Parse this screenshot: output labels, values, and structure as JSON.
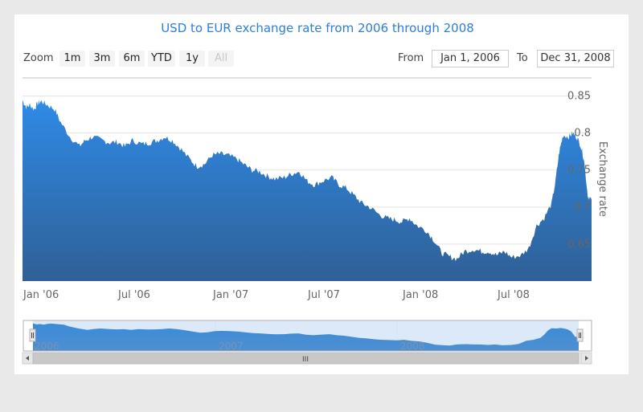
{
  "chart_title": "USD to EUR exchange rate from 2006 through 2008",
  "range_selector": {
    "zoom_label": "Zoom",
    "buttons": [
      "1m",
      "3m",
      "6m",
      "YTD",
      "1y",
      "All"
    ],
    "selected": "All",
    "from_label": "From",
    "from_value": "Jan 1, 2006",
    "to_label": "To",
    "to_value": "Dec 31, 2008"
  },
  "navigator": {
    "labels": [
      "2006",
      "2007",
      "2008"
    ],
    "scroll_grip": "III"
  },
  "colors": {
    "area_top": "#2f8ae6",
    "area_bottom": "#2f6096",
    "title": "#2f7ed8",
    "navigator_mask": "#dce9f8"
  },
  "chart_data": {
    "type": "area",
    "title": "USD to EUR exchange rate from 2006 through 2008",
    "xlabel": "",
    "ylabel": "Exchange rate",
    "ylim": [
      0.6,
      0.85
    ],
    "yticks": [
      "0.85",
      "0.8",
      "0.75",
      "0.7",
      "0.65"
    ],
    "xticks": [
      "Jan '06",
      "Jul '06",
      "Jan '07",
      "Jul '07",
      "Jan '08",
      "Jul '08"
    ],
    "series": [
      {
        "name": "USD to EUR",
        "x": [
          2006.0,
          2006.02,
          2006.04,
          2006.06,
          2006.08,
          2006.1,
          2006.13,
          2006.17,
          2006.2,
          2006.25,
          2006.3,
          2006.33,
          2006.37,
          2006.42,
          2006.46,
          2006.5,
          2006.54,
          2006.58,
          2006.63,
          2006.67,
          2006.71,
          2006.75,
          2006.79,
          2006.83,
          2006.88,
          2006.92,
          2006.96,
          2007.0,
          2007.04,
          2007.08,
          2007.13,
          2007.17,
          2007.21,
          2007.25,
          2007.29,
          2007.33,
          2007.38,
          2007.42,
          2007.46,
          2007.5,
          2007.54,
          2007.58,
          2007.63,
          2007.67,
          2007.71,
          2007.75,
          2007.79,
          2007.83,
          2007.88,
          2007.92,
          2007.96,
          2008.0,
          2008.04,
          2008.08,
          2008.13,
          2008.17,
          2008.21,
          2008.25,
          2008.29,
          2008.33,
          2008.38,
          2008.42,
          2008.46,
          2008.5,
          2008.54,
          2008.58,
          2008.63,
          2008.67,
          2008.71,
          2008.75,
          2008.79,
          2008.81,
          2008.83,
          2008.85,
          2008.88,
          2008.9,
          2008.92,
          2008.94,
          2008.96,
          2008.98,
          2009.0
        ],
        "values": [
          0.844,
          0.835,
          0.838,
          0.832,
          0.84,
          0.843,
          0.838,
          0.832,
          0.815,
          0.795,
          0.782,
          0.79,
          0.795,
          0.79,
          0.787,
          0.788,
          0.782,
          0.79,
          0.785,
          0.787,
          0.79,
          0.795,
          0.79,
          0.78,
          0.765,
          0.755,
          0.758,
          0.77,
          0.772,
          0.77,
          0.765,
          0.757,
          0.75,
          0.748,
          0.742,
          0.738,
          0.74,
          0.745,
          0.748,
          0.735,
          0.73,
          0.735,
          0.74,
          0.73,
          0.725,
          0.715,
          0.705,
          0.7,
          0.69,
          0.685,
          0.683,
          0.68,
          0.685,
          0.675,
          0.668,
          0.655,
          0.638,
          0.633,
          0.63,
          0.64,
          0.643,
          0.64,
          0.64,
          0.635,
          0.64,
          0.632,
          0.635,
          0.645,
          0.675,
          0.685,
          0.705,
          0.735,
          0.775,
          0.797,
          0.795,
          0.8,
          0.795,
          0.785,
          0.765,
          0.715,
          0.71
        ]
      }
    ]
  }
}
